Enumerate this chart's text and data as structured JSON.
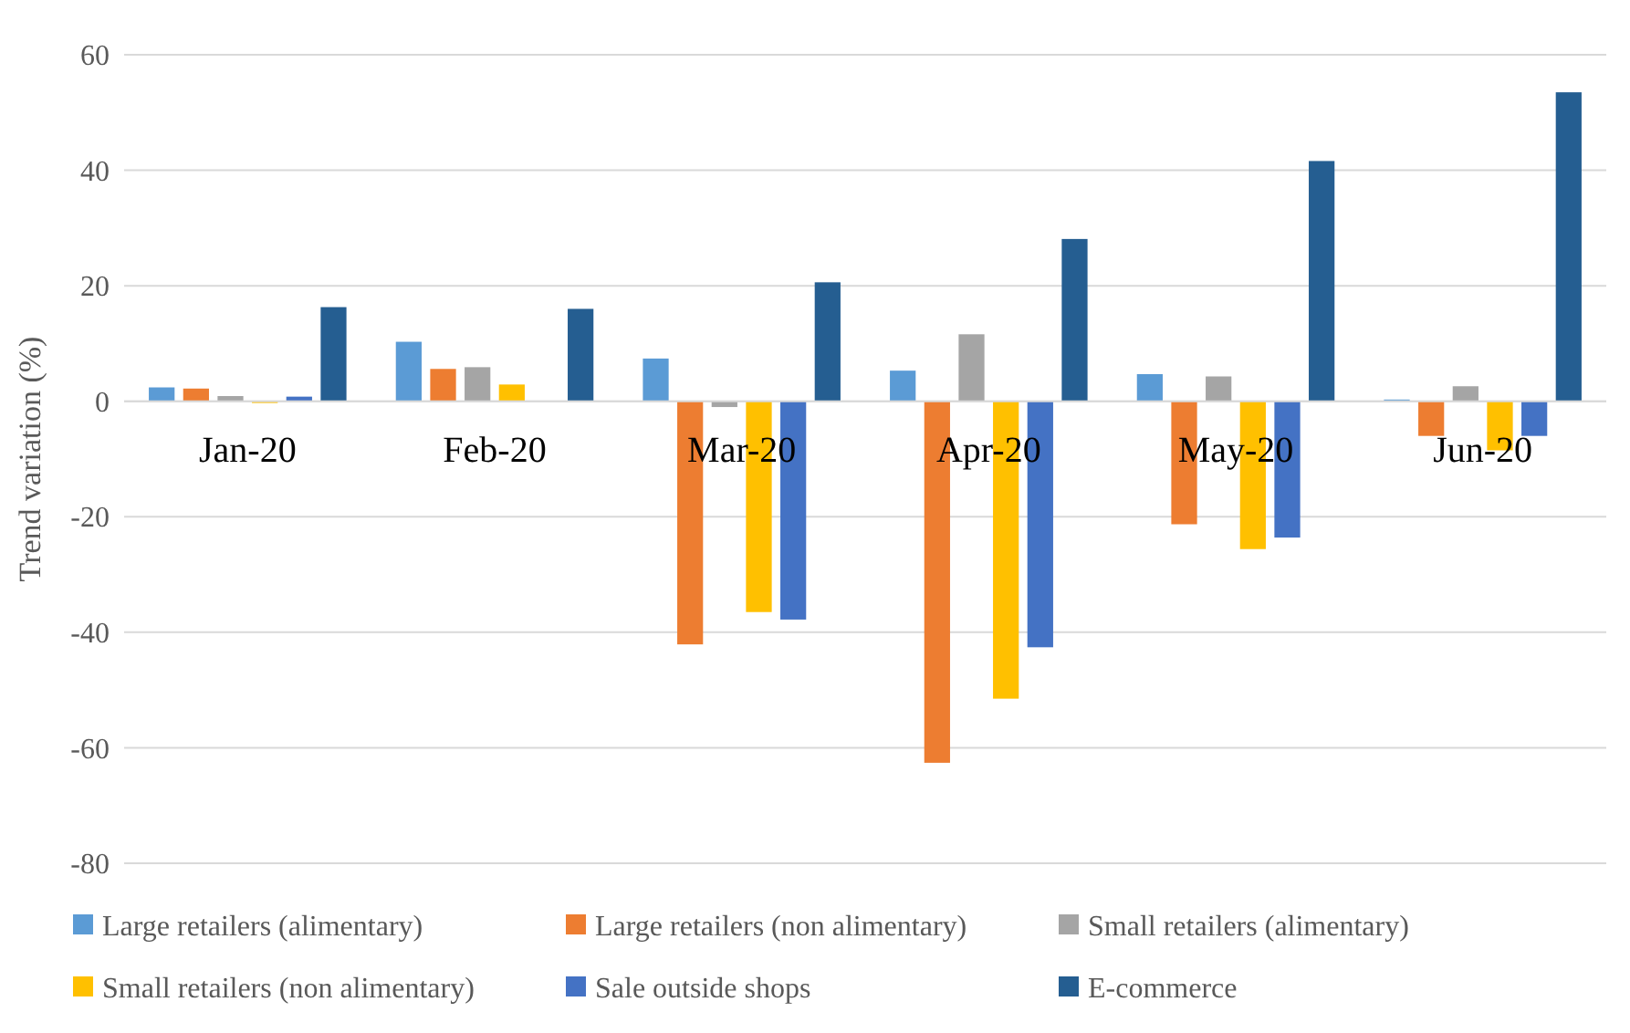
{
  "chart_data": {
    "type": "bar",
    "ylabel": "Trend variation (%)",
    "categories": [
      "Jan-20",
      "Feb-20",
      "Mar-20",
      "Apr-20",
      "May-20",
      "Jun-20"
    ],
    "series": [
      {
        "name": "Large retailers (alimentary)",
        "color": "#5b9bd5",
        "values": [
          2.4,
          10.3,
          7.4,
          5.3,
          4.7,
          0.3
        ]
      },
      {
        "name": "Large retailers (non alimentary)",
        "color": "#ed7d31",
        "values": [
          2.2,
          5.6,
          -42.1,
          -62.6,
          -21.3,
          -6
        ]
      },
      {
        "name": "Small retailers (alimentary)",
        "color": "#a5a5a5",
        "values": [
          0.9,
          5.9,
          -1,
          11.6,
          4.3,
          2.6
        ]
      },
      {
        "name": "Small retailers (non alimentary)",
        "color": "#ffc000",
        "values": [
          -0.3,
          2.9,
          -36.5,
          -51.5,
          -25.6,
          -8.5
        ]
      },
      {
        "name": "Sale outside shops",
        "color": "#4472c4",
        "values": [
          0.8,
          0,
          -37.8,
          -42.6,
          -23.6,
          -6
        ]
      },
      {
        "name": "E-commerce",
        "color": "#255e91",
        "values": [
          16.3,
          16,
          20.6,
          28.1,
          41.6,
          53.5
        ]
      }
    ],
    "ylim": [
      -80,
      60
    ],
    "yticks": [
      -80,
      -60,
      -40,
      -20,
      0,
      20,
      40,
      60
    ],
    "grid": "y",
    "legend": "bottom"
  }
}
